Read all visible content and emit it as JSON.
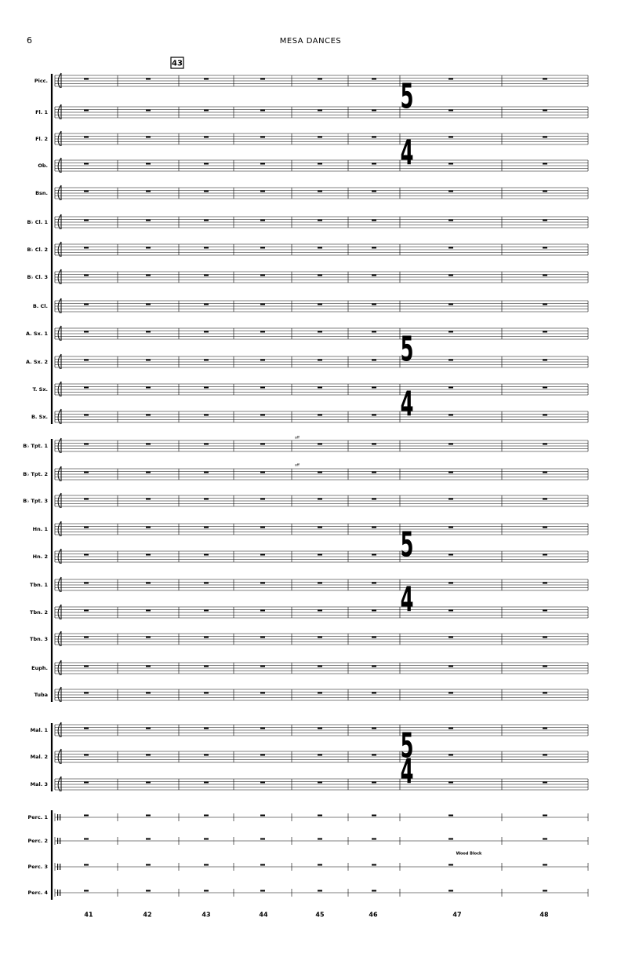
{
  "header": {
    "page_number": "6",
    "title": "MESA DANCES"
  },
  "rehearsal_mark": "43",
  "time_signature": {
    "numerator": "5",
    "denominator": "4"
  },
  "instruments": [
    "Picc.",
    "Fl. 1",
    "Fl. 2",
    "Ob.",
    "Bsn.",
    "B♭ Cl. 1",
    "B♭ Cl. 2",
    "B♭ Cl. 3",
    "B. Cl.",
    "A. Sx. 1",
    "A. Sx. 2",
    "T. Sx.",
    "B. Sx.",
    "B♭ Tpt. 1",
    "B♭ Tpt. 2",
    "B♭ Tpt. 3",
    "Hn. 1",
    "Hn. 2",
    "Tbn. 1",
    "Tbn. 2",
    "Tbn. 3",
    "Euph.",
    "Tuba",
    "Mal. 1",
    "Mal. 2",
    "Mal. 3",
    "Perc. 1",
    "Perc. 2",
    "Perc. 3",
    "Perc. 4"
  ],
  "annotations": {
    "wood_block": "Wood Block",
    "muted_1": "aff",
    "muted_2": "aff"
  },
  "measure_numbers": [
    "41",
    "42",
    "43",
    "44",
    "45",
    "46",
    "47",
    "48"
  ]
}
